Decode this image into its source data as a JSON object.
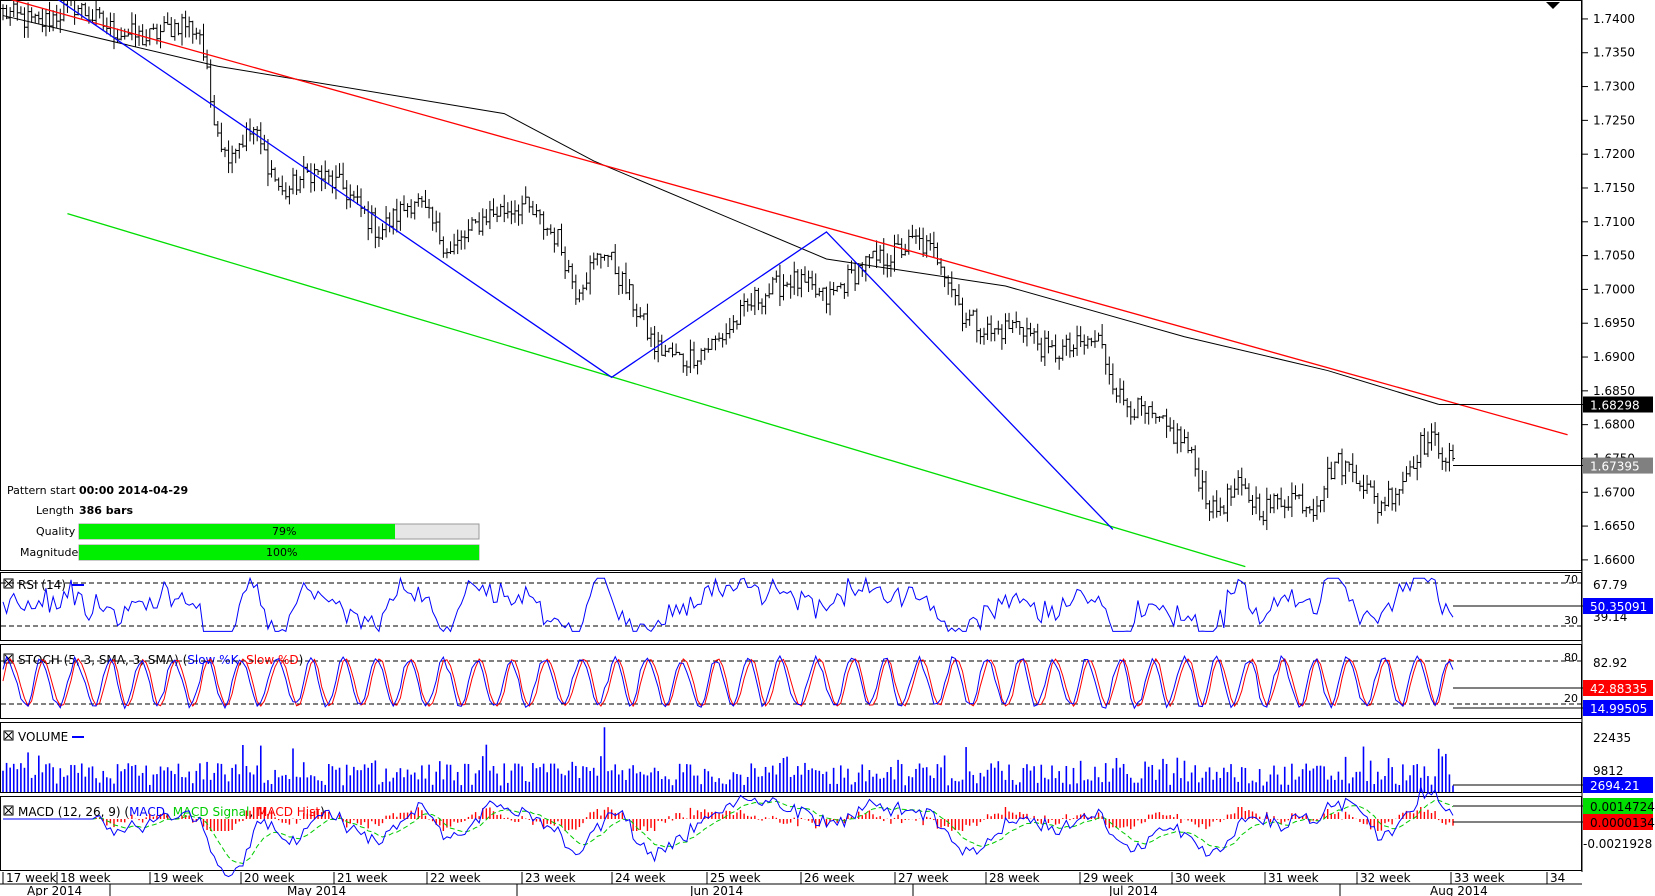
{
  "chart_data": [
    {
      "type": "ohlc",
      "panel": "price",
      "y_ticks": [
        "1.7400",
        "1.7350",
        "1.7300",
        "1.7250",
        "1.7200",
        "1.7150",
        "1.7100",
        "1.7050",
        "1.7000",
        "1.6950",
        "1.6900",
        "1.6850",
        "1.6800",
        "1.6750",
        "1.6700",
        "1.6650",
        "1.6600"
      ],
      "ylim": [
        1.6588,
        1.7428
      ],
      "price_path": [
        {
          "i": 0,
          "v": 1.741
        },
        {
          "i": 10,
          "v": 1.7392
        },
        {
          "i": 20,
          "v": 1.742
        },
        {
          "i": 30,
          "v": 1.7385
        },
        {
          "i": 40,
          "v": 1.737
        },
        {
          "i": 50,
          "v": 1.7395
        },
        {
          "i": 55,
          "v": 1.738
        },
        {
          "i": 58,
          "v": 1.728
        },
        {
          "i": 62,
          "v": 1.72
        },
        {
          "i": 70,
          "v": 1.7235
        },
        {
          "i": 78,
          "v": 1.714
        },
        {
          "i": 86,
          "v": 1.7175
        },
        {
          "i": 95,
          "v": 1.715
        },
        {
          "i": 105,
          "v": 1.7085
        },
        {
          "i": 115,
          "v": 1.7135
        },
        {
          "i": 125,
          "v": 1.7055
        },
        {
          "i": 135,
          "v": 1.711
        },
        {
          "i": 145,
          "v": 1.7125
        },
        {
          "i": 155,
          "v": 1.7075
        },
        {
          "i": 160,
          "v": 1.7
        },
        {
          "i": 168,
          "v": 1.706
        },
        {
          "i": 175,
          "v": 1.699
        },
        {
          "i": 182,
          "v": 1.6915
        },
        {
          "i": 190,
          "v": 1.6895
        },
        {
          "i": 200,
          "v": 1.6925
        },
        {
          "i": 210,
          "v": 1.6985
        },
        {
          "i": 220,
          "v": 1.7015
        },
        {
          "i": 230,
          "v": 1.6985
        },
        {
          "i": 240,
          "v": 1.7035
        },
        {
          "i": 248,
          "v": 1.705
        },
        {
          "i": 255,
          "v": 1.7072
        },
        {
          "i": 262,
          "v": 1.7045
        },
        {
          "i": 268,
          "v": 1.6965
        },
        {
          "i": 276,
          "v": 1.6935
        },
        {
          "i": 284,
          "v": 1.695
        },
        {
          "i": 292,
          "v": 1.6905
        },
        {
          "i": 300,
          "v": 1.6915
        },
        {
          "i": 306,
          "v": 1.6925
        },
        {
          "i": 312,
          "v": 1.684
        },
        {
          "i": 320,
          "v": 1.681
        },
        {
          "i": 330,
          "v": 1.6775
        },
        {
          "i": 338,
          "v": 1.667
        },
        {
          "i": 345,
          "v": 1.6705
        },
        {
          "i": 352,
          "v": 1.6675
        },
        {
          "i": 360,
          "v": 1.6695
        },
        {
          "i": 366,
          "v": 1.668
        },
        {
          "i": 372,
          "v": 1.6745
        },
        {
          "i": 378,
          "v": 1.673
        },
        {
          "i": 384,
          "v": 1.668
        },
        {
          "i": 390,
          "v": 1.671
        },
        {
          "i": 396,
          "v": 1.677
        },
        {
          "i": 400,
          "v": 1.6775
        },
        {
          "i": 405,
          "v": 1.674
        }
      ],
      "pattern_lines": [
        {
          "name": "upper-trend",
          "color": "#ff0000",
          "points": [
            [
              0,
              1.7432
            ],
            [
              437,
              1.6785
            ]
          ]
        },
        {
          "name": "lower-trend",
          "color": "#00dd00",
          "points": [
            [
              18,
              1.7112
            ],
            [
              347,
              1.659
            ]
          ]
        },
        {
          "name": "zigzag",
          "color": "#0000ff",
          "points": [
            [
              15,
              1.743
            ],
            [
              170,
              1.687
            ],
            [
              230,
              1.7085
            ],
            [
              310,
              1.6645
            ]
          ]
        }
      ],
      "moving_average": {
        "color": "#000000",
        "points": [
          [
            0,
            1.7405
          ],
          [
            60,
            1.733
          ],
          [
            140,
            1.726
          ],
          [
            165,
            1.719
          ],
          [
            230,
            1.7045
          ],
          [
            280,
            1.7005
          ],
          [
            330,
            1.693
          ],
          [
            370,
            1.688
          ],
          [
            401,
            1.683
          ]
        ]
      },
      "price_labels": [
        {
          "value": "1.68298",
          "level": 1.68298,
          "bg": "#000000"
        },
        {
          "value": "1.67395",
          "level": 1.67395,
          "bg": "#808080"
        }
      ],
      "x_week_labels": [
        "17 week",
        "18 week",
        "19 week",
        "20 week",
        "21 week",
        "22 week",
        "23 week",
        "24 week",
        "25 week",
        "26 week",
        "27 week",
        "28 week",
        "29 week",
        "30 week",
        "31 week",
        "32 week",
        "33 week",
        "34"
      ],
      "x_month_labels": [
        "Apr 2014",
        "May 2014",
        "Jun 2014",
        "Jul 2014",
        "Aug 2014"
      ]
    },
    {
      "type": "line",
      "panel": "rsi",
      "name": "RSI (14)",
      "levels": [
        70,
        30
      ],
      "ylim": [
        20,
        72
      ],
      "right_labels": [
        "67.79",
        "39.14"
      ],
      "value_box": "50.35091",
      "color": "#0000ff"
    },
    {
      "type": "line",
      "panel": "stoch",
      "name": "STOCH (5, 3, SMA, 3, SMA)",
      "series": [
        {
          "name": "Slow %K",
          "color": "#0000ff"
        },
        {
          "name": "Slow %D",
          "color": "#ff0000"
        }
      ],
      "levels": [
        80,
        20
      ],
      "right_labels": [
        "82.92"
      ],
      "value_boxes": [
        {
          "value": "42.88335",
          "bg": "#ff0000"
        },
        {
          "value": "14.99505",
          "bg": "#0000ff"
        }
      ]
    },
    {
      "type": "bar",
      "panel": "volume",
      "name": "VOLUME",
      "ylim": [
        0,
        26000
      ],
      "right_labels": [
        "22435",
        "9812"
      ],
      "value_box": "2694.21",
      "color": "#0000ff"
    },
    {
      "type": "line",
      "panel": "macd",
      "name": "MACD (12, 26, 9)",
      "series": [
        {
          "name": "MACD",
          "color": "#0000ff"
        },
        {
          "name": "MACD Signal",
          "color": "#00cc00"
        },
        {
          "name": "MACD Hist",
          "color": "#ff0000"
        }
      ],
      "right_labels": [
        "-0.0021928"
      ],
      "value_boxes": [
        {
          "value": "0.0014724",
          "bg": "#00dd00"
        },
        {
          "value": "0.0000134",
          "bg": "#ff0000"
        }
      ]
    }
  ],
  "pattern_info": {
    "start_label": "Pattern start",
    "start_value": "00:00 2014-04-29",
    "length_label": "Length",
    "length_value": "386 bars",
    "quality_label": "Quality",
    "quality_value": 79,
    "quality_text": "79%",
    "magnitude_label": "Magnitude",
    "magnitude_value": 100,
    "magnitude_text": "100%"
  },
  "panel_titles": {
    "rsi": "RSI (14)",
    "stoch_prefix": "STOCH (5, 3, SMA, 3, SMA) (",
    "stoch_k": "Slow %K",
    "stoch_sep": ", ",
    "stoch_d": "Slow %D",
    "stoch_suffix": ")",
    "volume": "VOLUME",
    "macd_prefix": "MACD (12, 26, 9) (",
    "macd_line": "MACD",
    "macd_signal": "MACD Signal",
    "macd_hist": "MACD Hist",
    "macd_suffix": ")",
    "rsi_level_high": "70",
    "rsi_level_low": "30",
    "stoch_level_high": "80",
    "stoch_level_low": "20"
  },
  "colors": {
    "accent": "#0000ff",
    "upper_trend": "#ff0000",
    "lower_trend": "#00dd00",
    "quality_fill": "#00ee00"
  }
}
